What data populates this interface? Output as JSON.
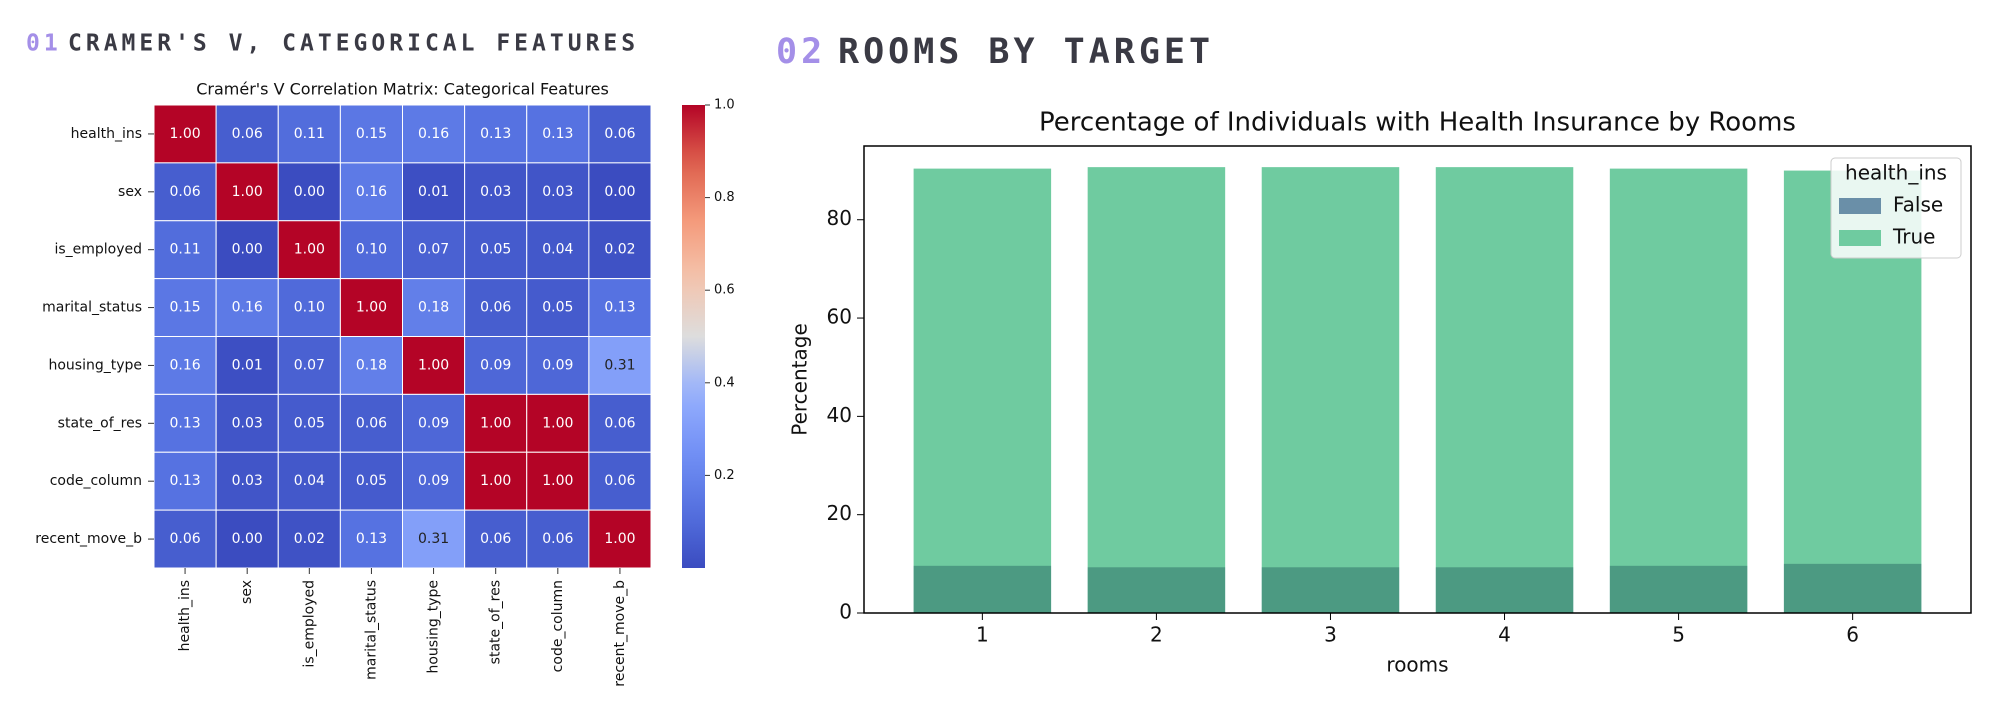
{
  "sections": [
    {
      "number": "01",
      "title": "CRAMER'S V, CATEGORICAL FEATURES"
    },
    {
      "number": "02",
      "title": "ROOMS BY TARGET"
    }
  ],
  "chart_data": [
    {
      "type": "heatmap",
      "title": "Cramér's V Correlation Matrix: Categorical Features",
      "categories": [
        "health_ins",
        "sex",
        "is_employed",
        "marital_status",
        "housing_type",
        "state_of_res",
        "code_column",
        "recent_move_b"
      ],
      "values": [
        [
          1.0,
          0.06,
          0.11,
          0.15,
          0.16,
          0.13,
          0.13,
          0.06
        ],
        [
          0.06,
          1.0,
          0.0,
          0.16,
          0.01,
          0.03,
          0.03,
          0.0
        ],
        [
          0.11,
          0.0,
          1.0,
          0.1,
          0.07,
          0.05,
          0.04,
          0.02
        ],
        [
          0.15,
          0.16,
          0.1,
          1.0,
          0.18,
          0.06,
          0.05,
          0.13
        ],
        [
          0.16,
          0.01,
          0.07,
          0.18,
          1.0,
          0.09,
          0.09,
          0.31
        ],
        [
          0.13,
          0.03,
          0.05,
          0.06,
          0.09,
          1.0,
          1.0,
          0.06
        ],
        [
          0.13,
          0.03,
          0.04,
          0.05,
          0.09,
          1.0,
          1.0,
          0.06
        ],
        [
          0.06,
          0.0,
          0.02,
          0.13,
          0.31,
          0.06,
          0.06,
          1.0
        ]
      ],
      "value_labels": [
        [
          "1.00",
          "0.06",
          "0.11",
          "0.15",
          "0.16",
          "0.13",
          "0.13",
          "0.06"
        ],
        [
          "0.06",
          "1.00",
          "0.00",
          "0.16",
          "0.01",
          "0.03",
          "0.03",
          "0.00"
        ],
        [
          "0.11",
          "0.00",
          "1.00",
          "0.10",
          "0.07",
          "0.05",
          "0.04",
          "0.02"
        ],
        [
          "0.15",
          "0.16",
          "0.10",
          "1.00",
          "0.18",
          "0.06",
          "0.05",
          "0.13"
        ],
        [
          "0.16",
          "0.01",
          "0.07",
          "0.18",
          "1.00",
          "0.09",
          "0.09",
          "0.31"
        ],
        [
          "0.13",
          "0.03",
          "0.05",
          "0.06",
          "0.09",
          "1.00",
          "1.00",
          "0.06"
        ],
        [
          "0.13",
          "0.03",
          "0.04",
          "0.05",
          "0.09",
          "1.00",
          "1.00",
          "0.06"
        ],
        [
          "0.06",
          "0.00",
          "0.02",
          "0.13",
          "0.31",
          "0.06",
          "0.06",
          "1.00"
        ]
      ],
      "colormap": "coolwarm",
      "clim": [
        0,
        1
      ],
      "cticks": [
        0.2,
        0.4,
        0.6,
        0.8,
        {
          "value": 1,
          "label": "1.0"
        }
      ]
    },
    {
      "type": "bar",
      "title": "Percentage of Individuals with Health Insurance by Rooms",
      "xlabel": "rooms",
      "ylabel": "Percentage",
      "categories": [
        "1",
        "2",
        "3",
        "4",
        "5",
        "6"
      ],
      "series": [
        {
          "name": "True",
          "color": "#6fcba0",
          "values": [
            90.4,
            90.7,
            90.7,
            90.7,
            90.4,
            90.0
          ]
        },
        {
          "name": "False",
          "color": "#6a8fa8",
          "values": [
            9.6,
            9.3,
            9.3,
            9.3,
            9.6,
            10.0
          ]
        }
      ],
      "ylim": [
        0,
        95
      ],
      "yticks": [
        0,
        20,
        40,
        60,
        80
      ],
      "grid": false,
      "legend": {
        "title": "health_ins",
        "loc": "upper right",
        "order": [
          "False",
          "True"
        ]
      }
    }
  ]
}
